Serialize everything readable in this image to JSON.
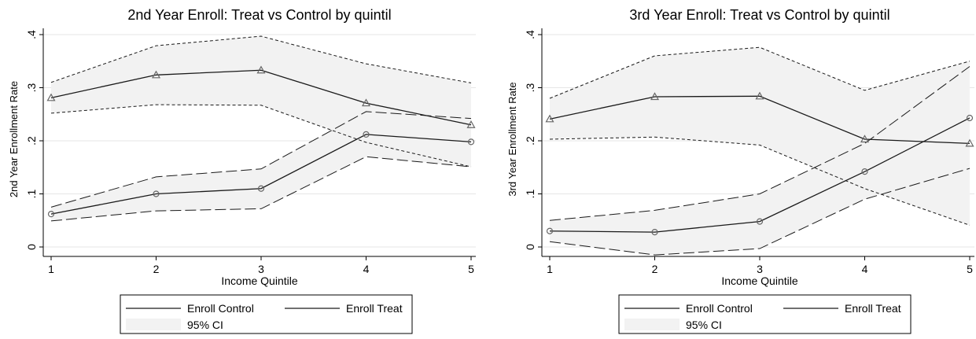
{
  "chart_data": [
    {
      "type": "line",
      "title": "2nd Year Enroll: Treat vs Control by quintil",
      "xlabel": "Income Quintile",
      "ylabel": "2nd Year Enrollment Rate",
      "x": [
        1,
        2,
        3,
        4,
        5
      ],
      "xticks": [
        "1",
        "2",
        "3",
        "4",
        "5"
      ],
      "yticks": [
        {
          "value": 0,
          "label": "0"
        },
        {
          "value": 0.1,
          "label": ".1"
        },
        {
          "value": 0.2,
          "label": ".2"
        },
        {
          "value": 0.3,
          "label": ".3"
        },
        {
          "value": 0.4,
          "label": ".4"
        }
      ],
      "xlim": [
        1,
        5
      ],
      "ylim": [
        0,
        0.4
      ],
      "grid": true,
      "series": [
        {
          "name": "Enroll Control",
          "marker": "circle",
          "values": [
            0.062,
            0.1,
            0.11,
            0.212,
            0.198
          ],
          "ci_low": [
            0.049,
            0.068,
            0.072,
            0.17,
            0.151
          ],
          "ci_high": [
            0.075,
            0.132,
            0.147,
            0.255,
            0.242
          ]
        },
        {
          "name": "Enroll Treat",
          "marker": "triangle",
          "values": [
            0.281,
            0.324,
            0.333,
            0.271,
            0.23
          ],
          "ci_low": [
            0.252,
            0.268,
            0.267,
            0.197,
            0.151
          ],
          "ci_high": [
            0.31,
            0.379,
            0.397,
            0.345,
            0.309
          ]
        }
      ],
      "legend": {
        "entries": [
          "Enroll Control",
          "Enroll Treat",
          "95% CI"
        ],
        "placement": "bottom"
      }
    },
    {
      "type": "line",
      "title": "3rd Year Enroll: Treat vs Control by quintil",
      "xlabel": "Income Quintile",
      "ylabel": "3rd Year Enrollment Rate",
      "x": [
        1,
        2,
        3,
        4,
        5
      ],
      "xticks": [
        "1",
        "2",
        "3",
        "4",
        "5"
      ],
      "yticks": [
        {
          "value": 0,
          "label": "0"
        },
        {
          "value": 0.1,
          "label": ".1"
        },
        {
          "value": 0.2,
          "label": ".2"
        },
        {
          "value": 0.3,
          "label": ".3"
        },
        {
          "value": 0.4,
          "label": ".4"
        }
      ],
      "xlim": [
        1,
        5
      ],
      "ylim": [
        0,
        0.4
      ],
      "grid": true,
      "series": [
        {
          "name": "Enroll Control",
          "marker": "circle",
          "values": [
            0.03,
            0.028,
            0.048,
            0.142,
            0.243
          ],
          "ci_low": [
            0.01,
            -0.015,
            -0.003,
            0.09,
            0.148
          ],
          "ci_high": [
            0.05,
            0.069,
            0.1,
            0.195,
            0.34
          ]
        },
        {
          "name": "Enroll Treat",
          "marker": "triangle",
          "values": [
            0.241,
            0.283,
            0.284,
            0.203,
            0.195
          ],
          "ci_low": [
            0.203,
            0.207,
            0.192,
            0.11,
            0.041
          ],
          "ci_high": [
            0.28,
            0.36,
            0.376,
            0.295,
            0.35
          ]
        }
      ],
      "legend": {
        "entries": [
          "Enroll Control",
          "Enroll Treat",
          "95% CI"
        ],
        "placement": "bottom"
      }
    }
  ],
  "colors": {
    "ci_fill": "#f2f2f2",
    "grid": "#e6e6e6",
    "line": "#1a1a1a",
    "marker": "#666666"
  }
}
